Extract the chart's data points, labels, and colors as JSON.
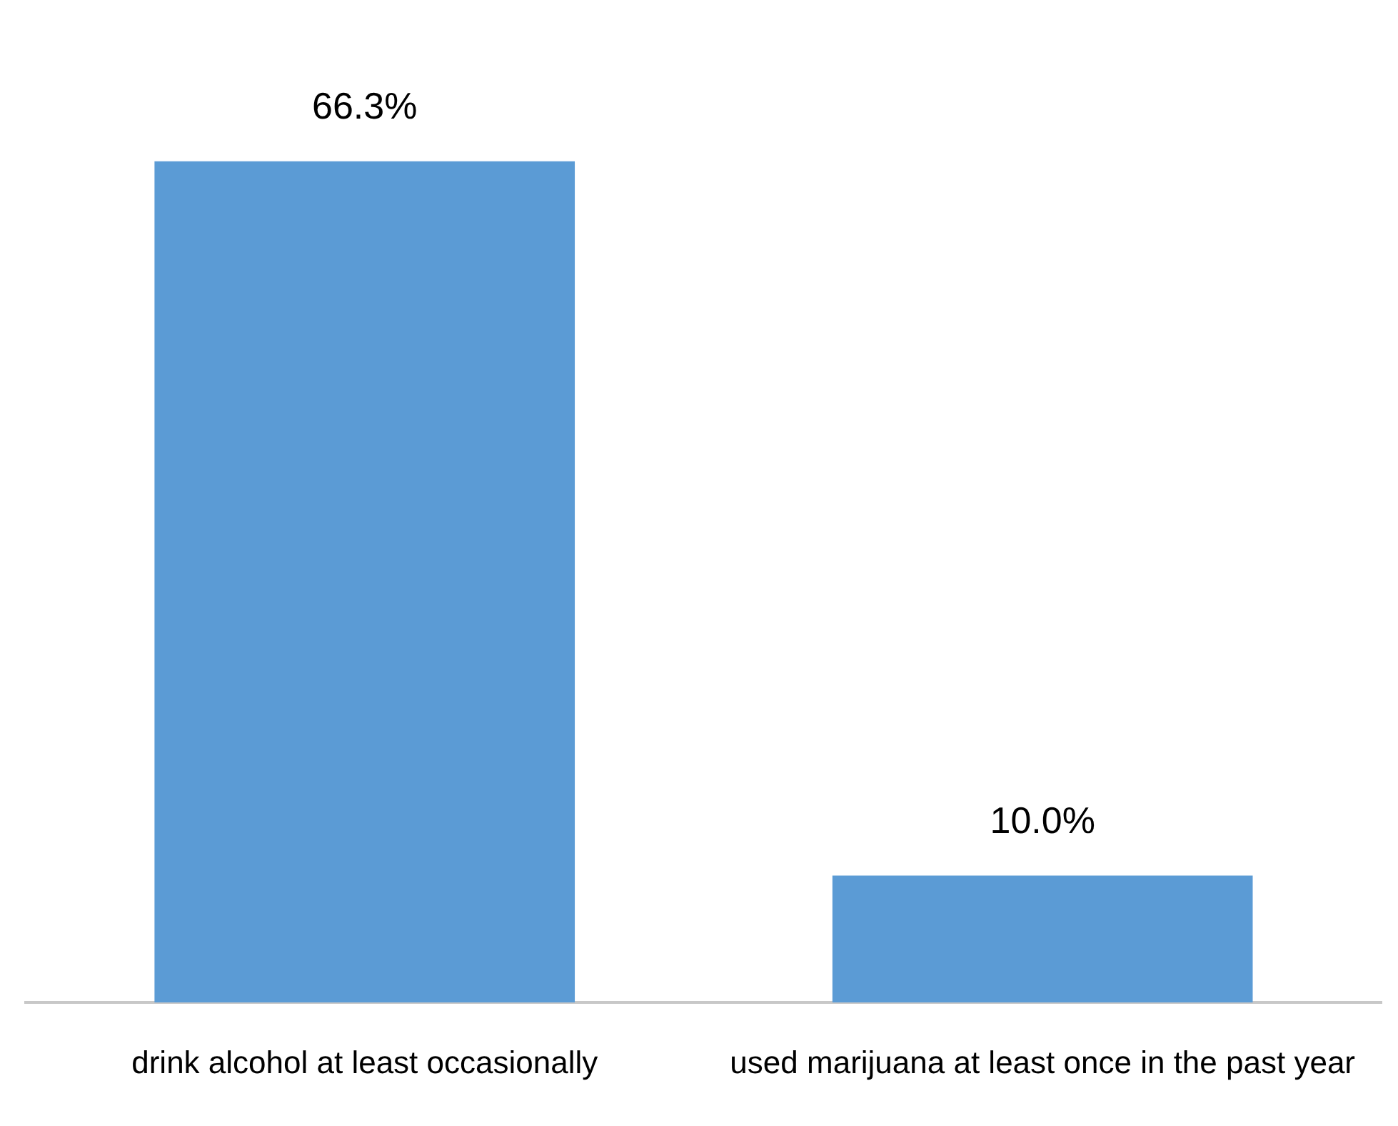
{
  "chart_data": {
    "type": "bar",
    "categories": [
      "drink alcohol at least occasionally",
      "used marijuana at least once in the past year"
    ],
    "values": [
      66.3,
      10.0
    ],
    "color": "#5b9bd5",
    "value_labels": [
      "66.3%",
      "10.0%"
    ],
    "grid": false,
    "legend": false
  }
}
